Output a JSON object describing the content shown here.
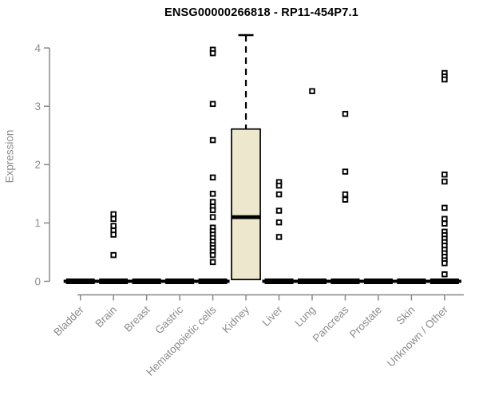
{
  "chart_data": {
    "type": "boxplot",
    "title": "ENSG00000266818 - RP11-454P7.1",
    "ylabel": "Expression",
    "xlabel": "",
    "yticks": [
      0,
      1,
      2,
      3,
      4
    ],
    "ylim": [
      0,
      4.3
    ],
    "grid": false,
    "legend": "none",
    "colors": {
      "box_fill": "#EDE8CD",
      "box_stroke": "#000000",
      "median": "#000000",
      "point": "#000000",
      "point_fill": "#ffffff",
      "axis": "#888888",
      "axis_text": "#8c8c8c",
      "title_text": "#000000"
    },
    "categories": [
      "Bladder",
      "Brain",
      "Breast",
      "Gastric",
      "Hematopoietic cells",
      "Kidney",
      "Liver",
      "Lung",
      "Pancreas",
      "Prostate",
      "Skin",
      "Unknown / Other"
    ],
    "boxes": [
      {
        "category": "Bladder",
        "median": 0,
        "q1": 0,
        "q3": 0,
        "whisker_low": 0,
        "whisker_high": 0,
        "outliers": []
      },
      {
        "category": "Brain",
        "median": 0,
        "q1": 0,
        "q3": 0,
        "whisker_low": 0,
        "whisker_high": 0,
        "outliers": [
          1.15,
          1.07,
          0.95,
          0.87,
          0.8,
          0.45
        ]
      },
      {
        "category": "Breast",
        "median": 0,
        "q1": 0,
        "q3": 0,
        "whisker_low": 0,
        "whisker_high": 0,
        "outliers": []
      },
      {
        "category": "Gastric",
        "median": 0,
        "q1": 0,
        "q3": 0,
        "whisker_low": 0,
        "whisker_high": 0,
        "outliers": []
      },
      {
        "category": "Hematopoietic cells",
        "median": 0,
        "q1": 0,
        "q3": 0,
        "whisker_low": 0,
        "whisker_high": 0,
        "outliers": [
          3.97,
          3.91,
          3.04,
          2.42,
          1.78,
          1.5,
          1.36,
          1.28,
          1.22,
          1.1,
          0.92,
          0.86,
          0.8,
          0.74,
          0.68,
          0.62,
          0.57,
          0.51,
          0.45,
          0.33
        ]
      },
      {
        "category": "Kidney",
        "median": 1.1,
        "q1": 0.03,
        "q3": 2.61,
        "whisker_low": 0.03,
        "whisker_high": 4.22,
        "outliers": []
      },
      {
        "category": "Liver",
        "median": 0,
        "q1": 0,
        "q3": 0,
        "whisker_low": 0,
        "whisker_high": 0,
        "outliers": [
          1.7,
          1.64,
          1.49,
          1.21,
          1.01,
          0.76
        ]
      },
      {
        "category": "Lung",
        "median": 0,
        "q1": 0,
        "q3": 0,
        "whisker_low": 0,
        "whisker_high": 0,
        "outliers": [
          3.26
        ]
      },
      {
        "category": "Pancreas",
        "median": 0,
        "q1": 0,
        "q3": 0,
        "whisker_low": 0,
        "whisker_high": 0,
        "outliers": [
          2.87,
          1.88,
          1.49,
          1.4
        ]
      },
      {
        "category": "Prostate",
        "median": 0,
        "q1": 0,
        "q3": 0,
        "whisker_low": 0,
        "whisker_high": 0,
        "outliers": []
      },
      {
        "category": "Skin",
        "median": 0,
        "q1": 0,
        "q3": 0,
        "whisker_low": 0,
        "whisker_high": 0,
        "outliers": []
      },
      {
        "category": "Unknown / Other",
        "median": 0,
        "q1": 0,
        "q3": 0,
        "whisker_low": 0,
        "whisker_high": 0,
        "outliers": [
          3.57,
          3.51,
          3.46,
          1.83,
          1.71,
          1.26,
          1.07,
          0.99,
          0.85,
          0.79,
          0.73,
          0.67,
          0.61,
          0.54,
          0.48,
          0.42,
          0.36,
          0.31,
          0.12
        ]
      }
    ]
  }
}
